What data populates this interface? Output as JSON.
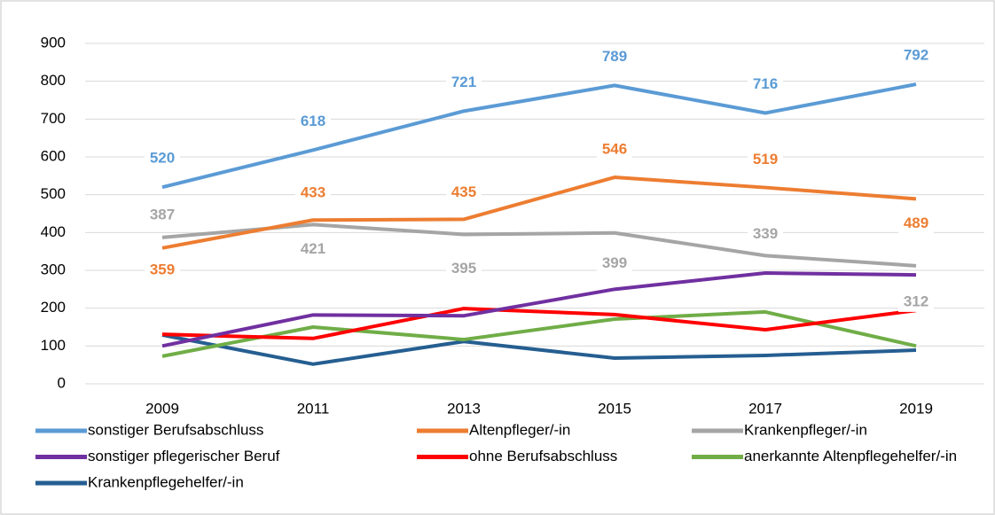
{
  "chart_data": {
    "type": "line",
    "categories": [
      "2009",
      "2011",
      "2013",
      "2015",
      "2017",
      "2019"
    ],
    "ylim": [
      0,
      900
    ],
    "yticks": [
      0,
      100,
      200,
      300,
      400,
      500,
      600,
      700,
      800,
      900
    ],
    "grid": true,
    "series": [
      {
        "name": "sonstiger Berufsabschluss",
        "color": "#5b9bd5",
        "values": [
          520,
          618,
          721,
          789,
          716,
          792
        ],
        "data_labels": true
      },
      {
        "name": "Altenpfleger/-in",
        "color": "#ed7d31",
        "values": [
          359,
          433,
          435,
          546,
          519,
          489
        ],
        "data_labels": true
      },
      {
        "name": "Krankenpfleger/-in",
        "color": "#a5a5a5",
        "values": [
          387,
          421,
          395,
          399,
          339,
          312
        ],
        "data_labels": true
      },
      {
        "name": "sonstiger pflegerischer Beruf",
        "color": "#7030a0",
        "values": [
          100,
          182,
          180,
          250,
          293,
          288
        ]
      },
      {
        "name": "ohne Berufsabschluss",
        "color": "#ff0000",
        "values": [
          131,
          120,
          199,
          183,
          143,
          194
        ]
      },
      {
        "name": "anerkannte Altenpflegehelfer/-in",
        "color": "#70ad47",
        "values": [
          73,
          150,
          117,
          171,
          190,
          100
        ]
      },
      {
        "name": "Krankenpflegehelfer/-in",
        "color": "#255e91",
        "values": [
          129,
          52,
          112,
          68,
          75,
          89
        ]
      }
    ],
    "legend": "bottom"
  }
}
